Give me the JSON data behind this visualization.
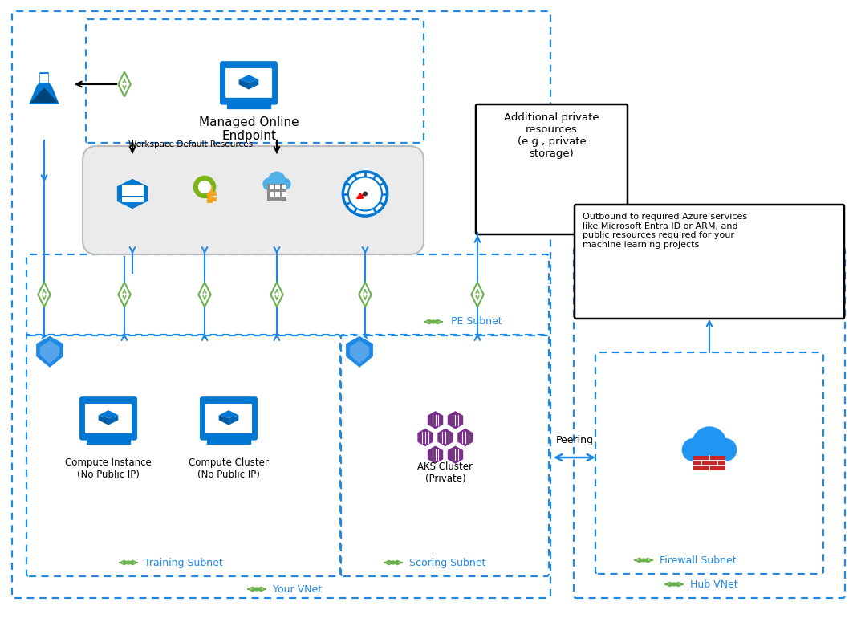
{
  "bg_color": "#ffffff",
  "blue_dashed": "#1e88e5",
  "dark_blue": "#0078d4",
  "arrow_blue": "#1e88e5",
  "title": "Managed Online\nEndpoint",
  "workspace_label": "Workspace Default Resources",
  "compute_instance_label": "Compute Instance\n(No Public IP)",
  "compute_cluster_label": "Compute Cluster\n(No Public IP)",
  "aks_cluster_label": "AKS Cluster\n(Private)",
  "additional_resources_label": "Additional private\nresources\n(e.g., private\nstorage)",
  "outbound_label": "Outbound to required Azure services\nlike Microsoft Entra ID or ARM, and\npublic resources required for your\nmachine learning projects",
  "peering_label": "Peering",
  "pe_subnet_label": "PE Subnet",
  "training_subnet_label": "Training Subnet",
  "scoring_subnet_label": "Scoring Subnet",
  "your_vnet_label": "Your VNet",
  "hub_vnet_label": "Hub VNet",
  "firewall_subnet_label": "Firewall Subnet"
}
